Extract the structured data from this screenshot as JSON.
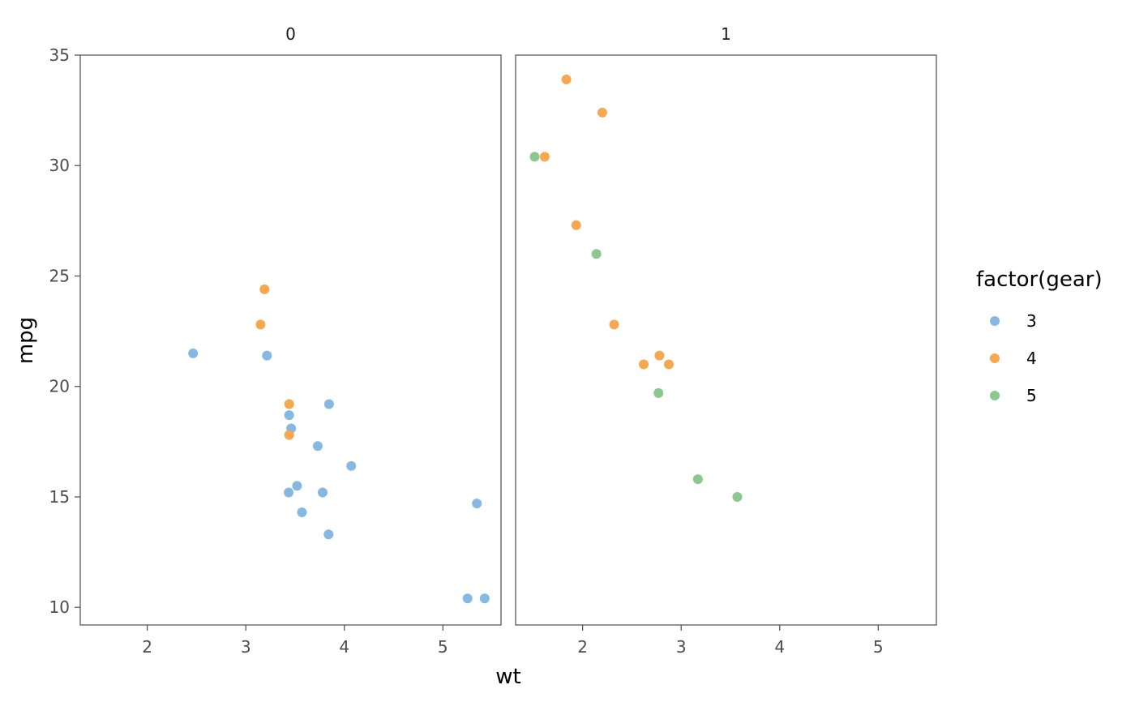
{
  "chart_data": {
    "type": "scatter",
    "xlabel": "wt",
    "ylabel": "mpg",
    "xlim": [
      1.32,
      5.59
    ],
    "ylim": [
      9.2,
      35.0
    ],
    "x_ticks": [
      2,
      3,
      4,
      5
    ],
    "y_ticks": [
      10,
      15,
      20,
      25,
      30,
      35
    ],
    "grid": false,
    "legend": {
      "title": "factor(gear)",
      "position": "right",
      "entries": [
        {
          "label": "3",
          "color": "#85B8E2"
        },
        {
          "label": "4",
          "color": "#F5A84F"
        },
        {
          "label": "5",
          "color": "#8CC78F"
        }
      ]
    },
    "facets": [
      {
        "label": "0",
        "points": [
          {
            "x": 2.465,
            "y": 21.5,
            "gear": "3"
          },
          {
            "x": 3.215,
            "y": 21.4,
            "gear": "3"
          },
          {
            "x": 3.44,
            "y": 18.7,
            "gear": "3"
          },
          {
            "x": 3.46,
            "y": 18.1,
            "gear": "3"
          },
          {
            "x": 3.57,
            "y": 14.3,
            "gear": "3"
          },
          {
            "x": 4.07,
            "y": 16.4,
            "gear": "3"
          },
          {
            "x": 3.73,
            "y": 17.3,
            "gear": "3"
          },
          {
            "x": 3.78,
            "y": 15.2,
            "gear": "3"
          },
          {
            "x": 5.25,
            "y": 10.4,
            "gear": "3"
          },
          {
            "x": 5.424,
            "y": 10.4,
            "gear": "3"
          },
          {
            "x": 5.345,
            "y": 14.7,
            "gear": "3"
          },
          {
            "x": 3.52,
            "y": 15.5,
            "gear": "3"
          },
          {
            "x": 3.435,
            "y": 15.2,
            "gear": "3"
          },
          {
            "x": 3.84,
            "y": 13.3,
            "gear": "3"
          },
          {
            "x": 3.845,
            "y": 19.2,
            "gear": "3"
          },
          {
            "x": 3.19,
            "y": 24.4,
            "gear": "4"
          },
          {
            "x": 3.15,
            "y": 22.8,
            "gear": "4"
          },
          {
            "x": 3.44,
            "y": 19.2,
            "gear": "4"
          },
          {
            "x": 3.44,
            "y": 17.8,
            "gear": "4"
          }
        ]
      },
      {
        "label": "1",
        "points": [
          {
            "x": 2.62,
            "y": 21.0,
            "gear": "4"
          },
          {
            "x": 2.875,
            "y": 21.0,
            "gear": "4"
          },
          {
            "x": 2.32,
            "y": 22.8,
            "gear": "4"
          },
          {
            "x": 2.2,
            "y": 32.4,
            "gear": "4"
          },
          {
            "x": 1.615,
            "y": 30.4,
            "gear": "4"
          },
          {
            "x": 1.835,
            "y": 33.9,
            "gear": "4"
          },
          {
            "x": 1.935,
            "y": 27.3,
            "gear": "4"
          },
          {
            "x": 2.78,
            "y": 21.4,
            "gear": "4"
          },
          {
            "x": 2.14,
            "y": 26.0,
            "gear": "5"
          },
          {
            "x": 1.513,
            "y": 30.4,
            "gear": "5"
          },
          {
            "x": 3.17,
            "y": 15.8,
            "gear": "5"
          },
          {
            "x": 2.77,
            "y": 19.7,
            "gear": "5"
          },
          {
            "x": 3.57,
            "y": 15.0,
            "gear": "5"
          }
        ]
      }
    ]
  }
}
